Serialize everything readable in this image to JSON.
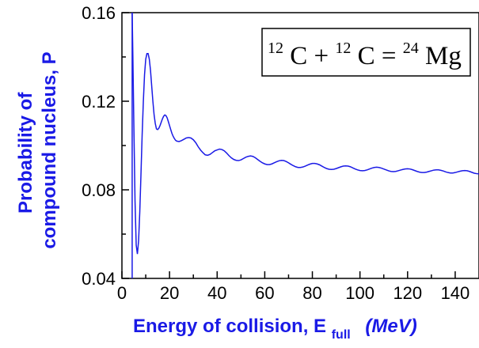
{
  "chart_data": {
    "type": "line",
    "xlabel_main": "Energy of collision, E",
    "xlabel_sub": "full",
    "xlabel_unit": "(MeV)",
    "ylabel_line1": "Probability of",
    "ylabel_line2": "compound nucleus, P",
    "annotation": {
      "a1": "12",
      "t1": "C + ",
      "a2": "12",
      "t2": "C = ",
      "a3": "24",
      "t3": "Mg"
    },
    "xlim": [
      0,
      150
    ],
    "ylim": [
      0.04,
      0.16
    ],
    "x_ticks": [
      "0",
      "20",
      "40",
      "60",
      "80",
      "100",
      "120",
      "140"
    ],
    "y_ticks": [
      "0.04",
      "0.08",
      "0.12",
      "0.16"
    ],
    "line_color": "#1a1ae6",
    "series": [
      {
        "x": [
          4.3,
          4.6,
          5.0,
          5.5,
          6.0,
          6.5,
          7.0,
          7.5,
          8.0,
          8.5,
          9.0,
          9.5,
          10.0,
          10.5,
          11.0,
          11.5,
          12.0,
          12.5,
          13.0,
          13.5,
          14.0,
          14.5,
          15.0,
          15.5,
          16.0,
          16.5,
          17.0,
          17.5,
          18.0,
          18.5,
          19.0,
          19.5,
          20.0,
          20.5,
          21.0,
          21.5,
          22.0,
          22.5,
          23.0,
          24.0,
          25.0,
          26.0,
          27.0,
          28.0,
          29.0,
          30.0,
          31.0,
          32.0,
          33.0,
          34.0,
          35.0,
          36.0,
          37.0,
          38.0,
          39.0,
          40.0,
          41.0,
          42.0,
          43.0,
          44.0,
          45.0,
          46.0,
          47.0,
          48.0,
          49.0,
          50.0,
          51.0,
          52.0,
          53.0,
          54.0,
          55.0,
          56.0,
          57.0,
          58.0,
          59.0,
          60.0,
          61.0,
          62.0,
          63.0,
          64.0,
          65.0,
          66.0,
          67.0,
          68.0,
          69.0,
          70.0,
          71.0,
          72.0,
          73.0,
          74.0,
          75.0,
          76.0,
          77.0,
          78.0,
          79.0,
          80.0,
          81.0,
          82.0,
          83.0,
          84.0,
          85.0,
          86.0,
          87.0,
          88.0,
          89.0,
          90.0,
          91.0,
          92.0,
          93.0,
          94.0,
          95.0,
          96.0,
          97.0,
          98.0,
          99.0,
          100.0,
          101.0,
          102.0,
          103.0,
          104.0,
          105.0,
          106.0,
          107.0,
          108.0,
          109.0,
          110.0,
          111.0,
          112.0,
          113.0,
          114.0,
          115.0,
          116.0,
          117.0,
          118.0,
          119.0,
          120.0,
          121.0,
          122.0,
          123.0,
          124.0,
          125.0,
          126.0,
          127.0,
          128.0,
          129.0,
          130.0,
          131.0,
          132.0,
          133.0,
          134.0,
          135.0,
          136.0,
          137.0,
          138.0,
          139.0,
          140.0,
          141.0,
          142.0,
          143.0,
          144.0,
          145.0,
          146.0,
          147.0,
          148.0,
          149.0,
          150.0
        ],
        "y": [
          0.16,
          0.14,
          0.11,
          0.075,
          0.055,
          0.051,
          0.057,
          0.07,
          0.087,
          0.105,
          0.12,
          0.132,
          0.139,
          0.1415,
          0.1415,
          0.139,
          0.134,
          0.127,
          0.12,
          0.114,
          0.11,
          0.1075,
          0.1072,
          0.1078,
          0.109,
          0.1105,
          0.112,
          0.1132,
          0.1138,
          0.1135,
          0.1125,
          0.1108,
          0.109,
          0.1072,
          0.1055,
          0.1042,
          0.1032,
          0.1024,
          0.102,
          0.1018,
          0.1022,
          0.1028,
          0.1034,
          0.1036,
          0.1034,
          0.1026,
          0.1013,
          0.0995,
          0.098,
          0.0968,
          0.0958,
          0.0956,
          0.096,
          0.0968,
          0.0976,
          0.098,
          0.0984,
          0.0982,
          0.0976,
          0.0966,
          0.0954,
          0.0944,
          0.0937,
          0.0933,
          0.0932,
          0.0935,
          0.0941,
          0.0947,
          0.0951,
          0.0953,
          0.0951,
          0.0945,
          0.0937,
          0.0929,
          0.0922,
          0.0917,
          0.0914,
          0.0914,
          0.0917,
          0.0922,
          0.0927,
          0.0931,
          0.0933,
          0.0932,
          0.0928,
          0.0922,
          0.0915,
          0.0909,
          0.0904,
          0.0901,
          0.0901,
          0.0903,
          0.0907,
          0.0912,
          0.0916,
          0.0919,
          0.0919,
          0.0917,
          0.0913,
          0.0907,
          0.0901,
          0.0896,
          0.0893,
          0.0892,
          0.0893,
          0.0896,
          0.09,
          0.0904,
          0.0907,
          0.0908,
          0.0907,
          0.0904,
          0.0899,
          0.0894,
          0.089,
          0.0887,
          0.0886,
          0.0887,
          0.089,
          0.0894,
          0.0898,
          0.0901,
          0.0902,
          0.0901,
          0.0898,
          0.0894,
          0.089,
          0.0886,
          0.0883,
          0.0882,
          0.0883,
          0.0886,
          0.0889,
          0.0892,
          0.0894,
          0.0895,
          0.0894,
          0.0891,
          0.0887,
          0.0883,
          0.088,
          0.0878,
          0.0878,
          0.088,
          0.0883,
          0.0886,
          0.0889,
          0.089,
          0.089,
          0.0888,
          0.0885,
          0.0881,
          0.0878,
          0.0876,
          0.0876,
          0.0878,
          0.0881,
          0.0884,
          0.0886,
          0.0887,
          0.0886,
          0.0883,
          0.0879,
          0.0875,
          0.0873,
          0.0872
        ]
      }
    ]
  }
}
